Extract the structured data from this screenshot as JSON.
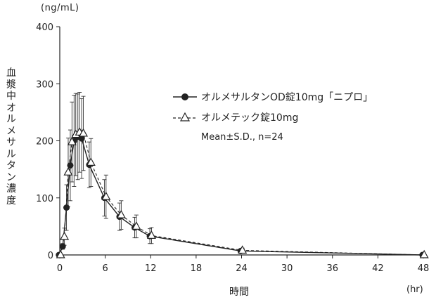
{
  "chart_data": {
    "type": "line",
    "unit_label": "(ng/mL)",
    "ylabel": "血漿中オルメサルタン濃度",
    "xlabel": "時間",
    "xunit": "(hr)",
    "xlim": [
      0,
      48
    ],
    "ylim": [
      0,
      400
    ],
    "xticks": [
      0,
      6,
      12,
      18,
      24,
      30,
      36,
      42,
      48
    ],
    "yticks": [
      0,
      100,
      200,
      300,
      400
    ],
    "grid": false,
    "legend_placement": "upper-middle",
    "note": "Mean±S.D., n=24",
    "series": [
      {
        "name": "オルメサルタンOD錠10mg「ニプロ」",
        "marker": "filled-circle",
        "line": "solid",
        "color": "#222222",
        "x": [
          0,
          0.5,
          1,
          1.5,
          2,
          2.5,
          3,
          4,
          6,
          8,
          10,
          12,
          24,
          48
        ],
        "y": [
          0,
          15,
          83,
          157,
          200,
          207,
          204,
          158,
          100,
          67,
          48,
          33,
          7,
          0
        ],
        "sd": [
          0,
          5,
          40,
          62,
          80,
          75,
          70,
          40,
          32,
          24,
          18,
          13,
          3,
          0
        ]
      },
      {
        "name": "オルメテック錠10mg",
        "marker": "open-triangle",
        "line": "dashed",
        "color": "#222222",
        "x": [
          0,
          0.5,
          1,
          1.5,
          2,
          2.5,
          3,
          4,
          6,
          8,
          10,
          12,
          24,
          48
        ],
        "y": [
          0,
          32,
          145,
          198,
          211,
          215,
          213,
          162,
          102,
          70,
          50,
          34,
          8,
          0
        ],
        "sd": [
          0,
          15,
          60,
          70,
          72,
          70,
          65,
          42,
          38,
          25,
          20,
          14,
          4,
          0
        ]
      }
    ]
  }
}
